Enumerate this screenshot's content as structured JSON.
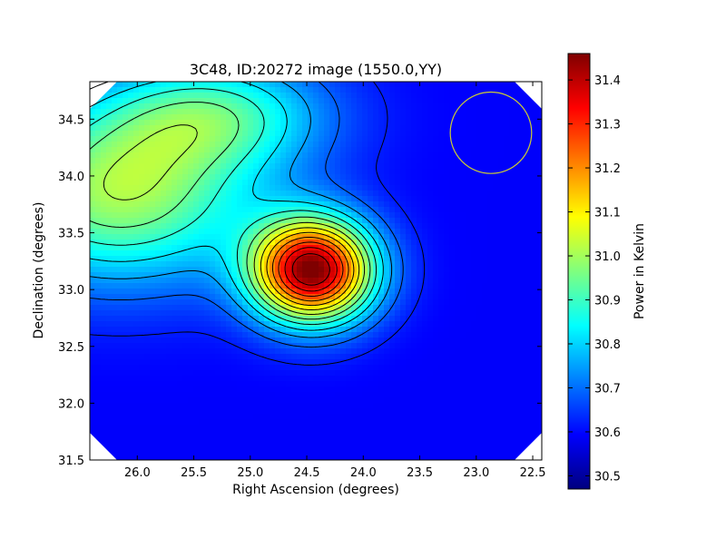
{
  "chart_data": {
    "type": "heatmap",
    "title": "3C48, ID:20272 image (1550.0,YY)",
    "xlabel": "Right Ascension (degrees)",
    "ylabel": "Declination (degrees)",
    "colorbar_label": "Power in Kelvin",
    "xlim": [
      26.42,
      22.42
    ],
    "ylim": [
      31.5,
      34.83
    ],
    "x_ticks": [
      {
        "value": 26.0,
        "label": "26.0"
      },
      {
        "value": 25.5,
        "label": "25.5"
      },
      {
        "value": 25.0,
        "label": "25.0"
      },
      {
        "value": 24.5,
        "label": "24.5"
      },
      {
        "value": 24.0,
        "label": "24.0"
      },
      {
        "value": 23.5,
        "label": "23.5"
      },
      {
        "value": 23.0,
        "label": "23.0"
      },
      {
        "value": 22.5,
        "label": "22.5"
      }
    ],
    "y_ticks": [
      {
        "value": 31.5,
        "label": "31.5"
      },
      {
        "value": 32.0,
        "label": "32.0"
      },
      {
        "value": 32.5,
        "label": "32.5"
      },
      {
        "value": 33.0,
        "label": "33.0"
      },
      {
        "value": 33.5,
        "label": "33.5"
      },
      {
        "value": 34.0,
        "label": "34.0"
      },
      {
        "value": 34.5,
        "label": "34.5"
      }
    ],
    "colorbar_range": [
      30.47,
      31.46
    ],
    "colorbar_ticks": [
      {
        "value": 30.5,
        "label": "30.5"
      },
      {
        "value": 30.6,
        "label": "30.6"
      },
      {
        "value": 30.7,
        "label": "30.7"
      },
      {
        "value": 30.8,
        "label": "30.8"
      },
      {
        "value": 30.9,
        "label": "30.9"
      },
      {
        "value": 31.0,
        "label": "31.0"
      },
      {
        "value": 31.1,
        "label": "31.1"
      },
      {
        "value": 31.2,
        "label": "31.2"
      },
      {
        "value": 31.3,
        "label": "31.3"
      },
      {
        "value": 31.4,
        "label": "31.4"
      }
    ],
    "colormap": "jet",
    "colormap_stops": [
      "#00007f",
      "#0000ff",
      "#007fff",
      "#00ffff",
      "#7fff7f",
      "#ffff00",
      "#ff7f00",
      "#ff0000",
      "#7f0000"
    ],
    "contour_color": "#000000",
    "sources": [
      {
        "ra": 24.45,
        "dec": 33.17,
        "peak": 31.45,
        "sigma_ra": 0.38,
        "sigma_dec": 0.32
      },
      {
        "ra": 26.15,
        "dec": 33.85,
        "peak": 31.0,
        "sigma_ra": 0.85,
        "sigma_dec": 0.55
      },
      {
        "ra": 25.3,
        "dec": 34.55,
        "peak": 30.86,
        "sigma_ra": 0.7,
        "sigma_dec": 0.35
      }
    ],
    "background_level": 30.59,
    "grid": false,
    "circle_marker": {
      "ra": 22.87,
      "dec": 34.38,
      "radius_deg": 0.36,
      "color": "#cccc33"
    }
  }
}
